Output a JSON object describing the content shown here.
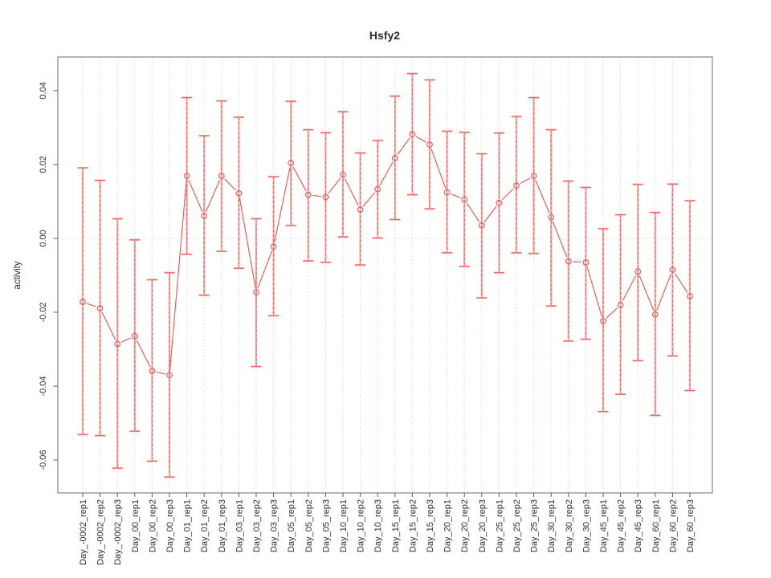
{
  "window": {
    "background": "#ffffff"
  },
  "chart_data": {
    "type": "line",
    "title": "Hsfy2",
    "xlabel": "",
    "ylabel": "activity",
    "legend": "none",
    "grid": "vertical dotted gridline at every category; horizontal dotted line at y=0 only",
    "ylim": [
      -0.0689,
      0.0491
    ],
    "ytick_values": [
      0.04,
      0.02,
      0.0,
      -0.02,
      -0.04,
      -0.06
    ],
    "ytick_labels": [
      "0.04",
      "0.02",
      "0.00",
      "-0.02",
      "-0.04",
      "-0.06"
    ],
    "categories": [
      "Day_-0002_rep1",
      "Day_-0002_rep2",
      "Day_-0002_rep3",
      "Day_00_rep1",
      "Day_00_rep2",
      "Day_00_rep3",
      "Day_01_rep1",
      "Day_01_rep2",
      "Day_01_rep3",
      "Day_03_rep1",
      "Day_03_rep2",
      "Day_03_rep3",
      "Day_05_rep1",
      "Day_05_rep2",
      "Day_05_rep3",
      "Day_10_rep1",
      "Day_10_rep2",
      "Day_10_rep3",
      "Day_15_rep1",
      "Day_15_rep2",
      "Day_15_rep3",
      "Day_20_rep1",
      "Day_20_rep2",
      "Day_20_rep3",
      "Day_25_rep1",
      "Day_25_rep2",
      "Day_25_rep3",
      "Day_30_rep1",
      "Day_30_rep2",
      "Day_30_rep3",
      "Day_45_rep1",
      "Day_45_rep2",
      "Day_45_rep3",
      "Day_60_rep1",
      "Day_60_rep2",
      "Day_60_rep3"
    ],
    "series": [
      {
        "name": "activity",
        "marker": "open-circle",
        "values": [
          -0.0172,
          -0.0189,
          -0.0286,
          -0.0265,
          -0.0359,
          -0.037,
          0.0169,
          0.0061,
          0.0169,
          0.0122,
          -0.0146,
          -0.0022,
          0.0204,
          0.0118,
          0.0112,
          0.0172,
          0.0078,
          0.0133,
          0.0217,
          0.0282,
          0.0254,
          0.0125,
          0.0105,
          0.0035,
          0.0096,
          0.0143,
          0.0169,
          0.0057,
          -0.0062,
          -0.0065,
          -0.0224,
          -0.018,
          -0.009,
          -0.0206,
          -0.0085,
          -0.0157
        ],
        "error_low": [
          -0.0531,
          -0.0534,
          -0.0622,
          -0.0522,
          -0.0603,
          -0.0646,
          -0.0043,
          -0.0154,
          -0.0035,
          -0.0081,
          -0.0347,
          -0.0209,
          0.0035,
          -0.0061,
          -0.0065,
          0.0004,
          -0.0072,
          0.0001,
          0.0051,
          0.0118,
          0.008,
          -0.0039,
          -0.0076,
          -0.0161,
          -0.0093,
          -0.0039,
          -0.0041,
          -0.0183,
          -0.0278,
          -0.0273,
          -0.0469,
          -0.0422,
          -0.0331,
          -0.0479,
          -0.0318,
          -0.0412
        ],
        "error_high": [
          0.0191,
          0.0157,
          0.0053,
          -0.0004,
          -0.0112,
          -0.0093,
          0.0381,
          0.0278,
          0.0372,
          0.0328,
          0.0053,
          0.0167,
          0.0371,
          0.0294,
          0.0286,
          0.0343,
          0.0231,
          0.0265,
          0.0385,
          0.0446,
          0.0429,
          0.029,
          0.0287,
          0.0229,
          0.0285,
          0.033,
          0.0381,
          0.0294,
          0.0155,
          0.0138,
          0.0026,
          0.0064,
          0.0146,
          0.007,
          0.0147,
          0.0102
        ]
      }
    ],
    "colors": {
      "line": "#e8524e",
      "point": "#e8524e",
      "error_bar_solid": "#f5a6a3",
      "error_bar_dash": "#e8524e",
      "gridline": "#d9d9d9",
      "zero_line": "#d9d9d9",
      "box": "#969696",
      "tick": "#5a5a5a",
      "text": "#2d2d2d"
    }
  }
}
